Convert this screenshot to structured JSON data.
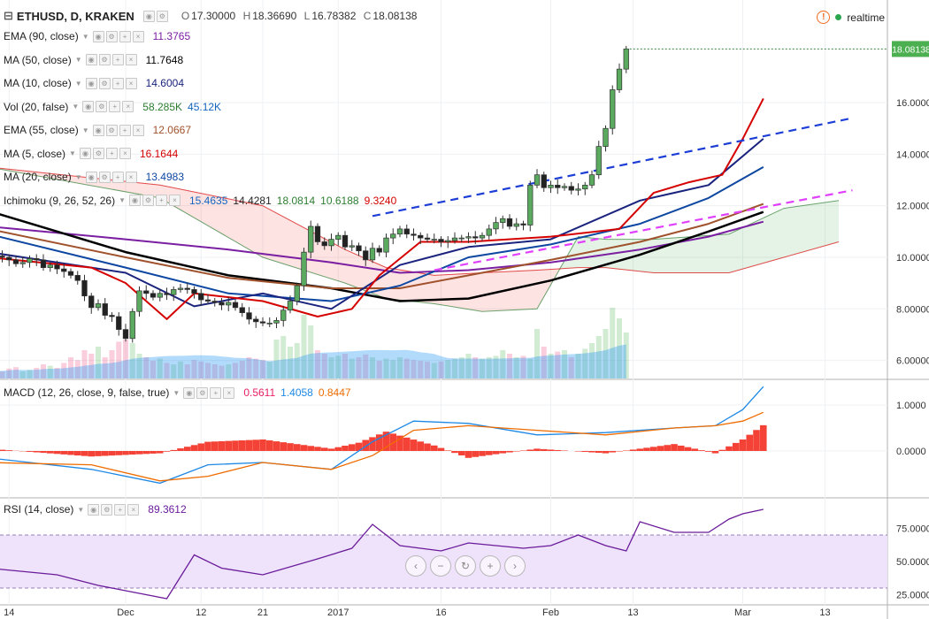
{
  "header": {
    "menu_glyph": "⊟",
    "symbol": "ETHUSD, D, KRAKEN",
    "open_label": "O",
    "open": "17.30000",
    "high_label": "H",
    "high": "18.36690",
    "low_label": "L",
    "low": "16.78382",
    "close_label": "C",
    "close": "18.08138",
    "realtime_label": "realtime",
    "price_tag": "18.08138"
  },
  "indicators": [
    {
      "name": "EMA (90, close)",
      "values": [
        "11.3765"
      ],
      "colors": [
        "#7b1fa2"
      ]
    },
    {
      "name": "MA (50, close)",
      "values": [
        "11.7648"
      ],
      "colors": [
        "#000000"
      ]
    },
    {
      "name": "MA (10, close)",
      "values": [
        "14.6004"
      ],
      "colors": [
        "#1a237e"
      ]
    },
    {
      "name": "Vol (20, false)",
      "values": [
        "58.285K",
        "45.12K"
      ],
      "colors": [
        "#2e7d32",
        "#1565c0"
      ]
    },
    {
      "name": "EMA (55, close)",
      "values": [
        "12.0667"
      ],
      "colors": [
        "#a0522d"
      ]
    },
    {
      "name": "MA (5, close)",
      "values": [
        "16.1644"
      ],
      "colors": [
        "#d50000"
      ]
    },
    {
      "name": "MA (20, close)",
      "values": [
        "13.4983"
      ],
      "colors": [
        "#0d47a1"
      ]
    },
    {
      "name": "Ichimoku (9, 26, 52, 26)",
      "values": [
        "15.4635",
        "14.4281",
        "18.0814",
        "10.6188",
        "9.3240"
      ],
      "colors": [
        "#1565c0",
        "#222222",
        "#2e7d32",
        "#2e7d32",
        "#d50000"
      ]
    }
  ],
  "macd": {
    "name": "MACD (12, 26, close, 9, false, true)",
    "values": [
      "0.5611",
      "1.4058",
      "0.8447"
    ],
    "colors": [
      "#e91e63",
      "#1e88e5",
      "#ef6c00"
    ]
  },
  "rsi": {
    "name": "RSI (14, close)",
    "values": [
      "89.3612"
    ],
    "colors": [
      "#6a1b9a"
    ]
  },
  "nav_buttons": [
    "‹",
    "−",
    "↻",
    "+",
    "›"
  ],
  "chart_data": {
    "type": "candlestick",
    "title": "ETHUSD, D, KRAKEN",
    "x_ticks": [
      "14",
      "Dec",
      "12",
      "21",
      "2017",
      "16",
      "Feb",
      "13",
      "Mar",
      "13"
    ],
    "x_tick_days": [
      -17,
      0,
      11,
      20,
      31,
      46,
      62,
      74,
      90,
      102
    ],
    "price_axis": {
      "ticks": [
        "6.00000",
        "8.00000",
        "10.00000",
        "12.00000",
        "14.00000",
        "16.00000"
      ],
      "ylim": [
        5.3,
        19.5
      ]
    },
    "macd_axis": {
      "ticks": [
        "1.0000",
        "0.0000"
      ],
      "ylim": [
        -1.0,
        1.5
      ]
    },
    "rsi_axis": {
      "ticks": [
        "75.0000",
        "50.0000",
        "25.0000"
      ],
      "ylim": [
        18,
        96
      ],
      "bands": [
        30,
        70
      ]
    },
    "candles_start_day": -20,
    "closes": [
      9.95,
      10.05,
      10.0,
      9.9,
      9.75,
      9.8,
      9.95,
      9.9,
      9.6,
      9.7,
      9.55,
      9.45,
      9.3,
      9.1,
      8.5,
      8.05,
      8.2,
      7.75,
      7.7,
      7.2,
      6.85,
      7.9,
      8.7,
      8.6,
      8.45,
      8.6,
      8.55,
      8.75,
      8.8,
      8.75,
      8.6,
      8.35,
      8.3,
      8.25,
      8.15,
      8.25,
      8.05,
      7.85,
      7.6,
      7.5,
      7.45,
      7.45,
      7.55,
      7.95,
      8.3,
      8.9,
      10.2,
      11.2,
      10.6,
      10.45,
      10.7,
      10.85,
      10.4,
      10.45,
      10.25,
      9.9,
      10.35,
      10.2,
      10.75,
      10.9,
      11.1,
      10.9,
      10.85,
      10.75,
      10.7,
      10.7,
      10.6,
      10.65,
      10.75,
      10.75,
      10.8,
      10.75,
      10.85,
      11.1,
      11.35,
      11.5,
      11.2,
      11.3,
      11.25,
      12.8,
      13.2,
      12.7,
      12.8,
      12.7,
      12.75,
      12.6,
      12.65,
      12.8,
      13.2,
      14.3,
      15.0,
      16.5,
      17.3,
      18.08
    ],
    "opens": [
      9.9,
      9.95,
      10.05,
      10.0,
      9.9,
      9.75,
      9.8,
      9.95,
      9.9,
      9.6,
      9.7,
      9.55,
      9.45,
      9.3,
      9.1,
      8.5,
      8.05,
      8.2,
      7.75,
      7.7,
      7.2,
      6.85,
      7.9,
      8.7,
      8.6,
      8.45,
      8.6,
      8.55,
      8.75,
      8.8,
      8.75,
      8.6,
      8.35,
      8.3,
      8.25,
      8.15,
      8.25,
      8.05,
      7.85,
      7.6,
      7.5,
      7.45,
      7.45,
      7.55,
      7.95,
      8.3,
      8.9,
      10.2,
      11.2,
      10.6,
      10.45,
      10.7,
      10.85,
      10.4,
      10.45,
      10.25,
      9.9,
      10.35,
      10.2,
      10.75,
      10.9,
      11.1,
      10.9,
      10.85,
      10.75,
      10.7,
      10.7,
      10.6,
      10.65,
      10.75,
      10.75,
      10.8,
      10.75,
      10.85,
      11.1,
      11.35,
      11.5,
      11.2,
      11.3,
      11.25,
      12.8,
      13.2,
      12.7,
      12.8,
      12.7,
      12.75,
      12.6,
      12.65,
      12.8,
      13.2,
      14.3,
      15.0,
      16.5,
      17.3
    ],
    "volume_relative": [
      0.1,
      0.12,
      0.1,
      0.14,
      0.16,
      0.1,
      0.12,
      0.15,
      0.2,
      0.18,
      0.15,
      0.22,
      0.3,
      0.26,
      0.4,
      0.35,
      0.45,
      0.3,
      0.4,
      0.52,
      0.55,
      0.5,
      0.35,
      0.3,
      0.25,
      0.28,
      0.22,
      0.2,
      0.24,
      0.2,
      0.26,
      0.24,
      0.22,
      0.2,
      0.18,
      0.2,
      0.22,
      0.25,
      0.3,
      0.28,
      0.26,
      0.24,
      0.55,
      0.6,
      0.45,
      0.5,
      0.9,
      0.75,
      0.4,
      0.35,
      0.3,
      0.32,
      0.35,
      0.28,
      0.3,
      0.34,
      0.3,
      0.25,
      0.28,
      0.26,
      0.3,
      0.28,
      0.26,
      0.25,
      0.24,
      0.22,
      0.24,
      0.26,
      0.28,
      0.3,
      0.35,
      0.3,
      0.28,
      0.3,
      0.32,
      0.4,
      0.35,
      0.3,
      0.32,
      0.28,
      0.7,
      0.45,
      0.35,
      0.38,
      0.4,
      0.3,
      0.35,
      0.42,
      0.5,
      0.6,
      0.7,
      1.0,
      0.85,
      0.65
    ],
    "moving_averages": [
      {
        "name": "EMA (90, close)",
        "color": "#7b1fa2",
        "days": [
          -20,
          0,
          15,
          30,
          40,
          50,
          62,
          75,
          85,
          93
        ],
        "values": [
          11.2,
          10.7,
          10.3,
          9.8,
          9.4,
          9.5,
          9.8,
          10.3,
          10.8,
          11.38
        ]
      },
      {
        "name": "MA (50, close)",
        "color": "#000000",
        "days": [
          -20,
          0,
          15,
          30,
          40,
          50,
          62,
          75,
          85,
          93
        ],
        "values": [
          11.8,
          10.2,
          9.3,
          8.8,
          8.3,
          8.4,
          9.1,
          10.1,
          11.0,
          11.76
        ]
      },
      {
        "name": "EMA (55, close)",
        "color": "#a0522d",
        "days": [
          -20,
          0,
          15,
          30,
          40,
          50,
          62,
          75,
          85,
          93
        ],
        "values": [
          11.1,
          10.0,
          9.2,
          8.8,
          8.8,
          9.3,
          9.9,
          10.6,
          11.3,
          12.07
        ]
      },
      {
        "name": "MA (20, close)",
        "color": "#0d47a1",
        "days": [
          -20,
          0,
          15,
          30,
          40,
          50,
          62,
          75,
          85,
          93
        ],
        "values": [
          10.9,
          9.6,
          8.6,
          8.3,
          8.9,
          10.0,
          10.5,
          11.3,
          12.3,
          13.5
        ]
      },
      {
        "name": "MA (10, close)",
        "color": "#1a237e",
        "days": [
          -20,
          0,
          10,
          20,
          30,
          40,
          50,
          62,
          75,
          85,
          93
        ],
        "values": [
          10.2,
          9.4,
          8.1,
          8.6,
          8.0,
          9.7,
          10.4,
          10.7,
          12.2,
          12.8,
          14.6
        ]
      },
      {
        "name": "MA (5, close)",
        "color": "#d50000",
        "days": [
          -20,
          -5,
          0,
          6,
          10,
          20,
          28,
          33,
          37,
          43,
          50,
          62,
          72,
          77,
          82,
          87,
          90,
          93
        ],
        "values": [
          10.0,
          9.6,
          9.0,
          7.6,
          8.6,
          8.3,
          7.7,
          8.0,
          9.3,
          10.6,
          10.6,
          10.8,
          11.1,
          12.5,
          12.9,
          13.2,
          14.6,
          16.16
        ]
      }
    ],
    "ichimoku_cloud": [
      {
        "name": "Span A",
        "color": "#2e7d32",
        "days": [
          -20,
          5,
          20,
          32,
          38,
          45,
          52,
          60,
          66,
          70,
          77,
          88,
          96,
          104
        ],
        "values": [
          13.5,
          12.3,
          10.0,
          9.0,
          8.4,
          8.2,
          7.9,
          8.0,
          10.8,
          10.7,
          10.7,
          10.9,
          11.9,
          12.2
        ]
      },
      {
        "name": "Span B",
        "color": "#d50000",
        "days": [
          -20,
          5,
          20,
          32,
          38,
          45,
          52,
          60,
          66,
          70,
          77,
          88,
          96,
          104
        ],
        "values": [
          13.5,
          12.8,
          12.0,
          10.3,
          9.6,
          9.3,
          9.4,
          9.5,
          9.6,
          9.6,
          9.4,
          9.4,
          10.0,
          10.6
        ]
      }
    ],
    "trendlines": [
      {
        "style": "dashed",
        "color": "#1e3fd6",
        "from": [
          36,
          11.6
        ],
        "to": [
          106,
          15.4
        ]
      },
      {
        "style": "dashed",
        "color": "#e040fb",
        "from": [
          45,
          9.5
        ],
        "to": [
          106,
          12.6
        ]
      }
    ],
    "macd_series": [
      {
        "name": "MACD",
        "color": "#1e88e5",
        "days": [
          -20,
          -5,
          5,
          12,
          20,
          30,
          36,
          42,
          50,
          60,
          70,
          80,
          86,
          90,
          93
        ],
        "values": [
          -0.15,
          -0.4,
          -0.7,
          -0.3,
          -0.25,
          -0.4,
          0.2,
          0.65,
          0.6,
          0.35,
          0.4,
          0.5,
          0.55,
          0.9,
          1.4
        ]
      },
      {
        "name": "Signal",
        "color": "#ef6c00",
        "days": [
          -20,
          -5,
          5,
          12,
          20,
          30,
          36,
          42,
          50,
          60,
          70,
          80,
          86,
          90,
          93
        ],
        "values": [
          -0.25,
          -0.3,
          -0.65,
          -0.55,
          -0.25,
          -0.4,
          -0.1,
          0.45,
          0.55,
          0.45,
          0.35,
          0.5,
          0.55,
          0.65,
          0.84
        ]
      },
      {
        "name": "Histogram",
        "color": "#f44336",
        "days": [
          -20,
          -5,
          5,
          12,
          20,
          30,
          34,
          38,
          45,
          50,
          60,
          70,
          80,
          86,
          90,
          93
        ],
        "values": [
          0.05,
          -0.12,
          -0.05,
          0.2,
          0.25,
          0.05,
          0.18,
          0.42,
          0.12,
          -0.15,
          0.05,
          -0.05,
          0.15,
          -0.05,
          0.25,
          0.56
        ]
      }
    ],
    "rsi_series": {
      "days": [
        -20,
        -10,
        -4,
        0,
        6,
        10,
        14,
        20,
        28,
        33,
        36,
        40,
        46,
        50,
        58,
        62,
        66,
        70,
        73,
        75,
        80,
        85,
        88,
        90,
        93
      ],
      "values": [
        45,
        40,
        32,
        28,
        22,
        55,
        45,
        40,
        52,
        60,
        78,
        62,
        58,
        64,
        60,
        62,
        70,
        62,
        58,
        80,
        72,
        72,
        82,
        86,
        89.36
      ]
    }
  }
}
